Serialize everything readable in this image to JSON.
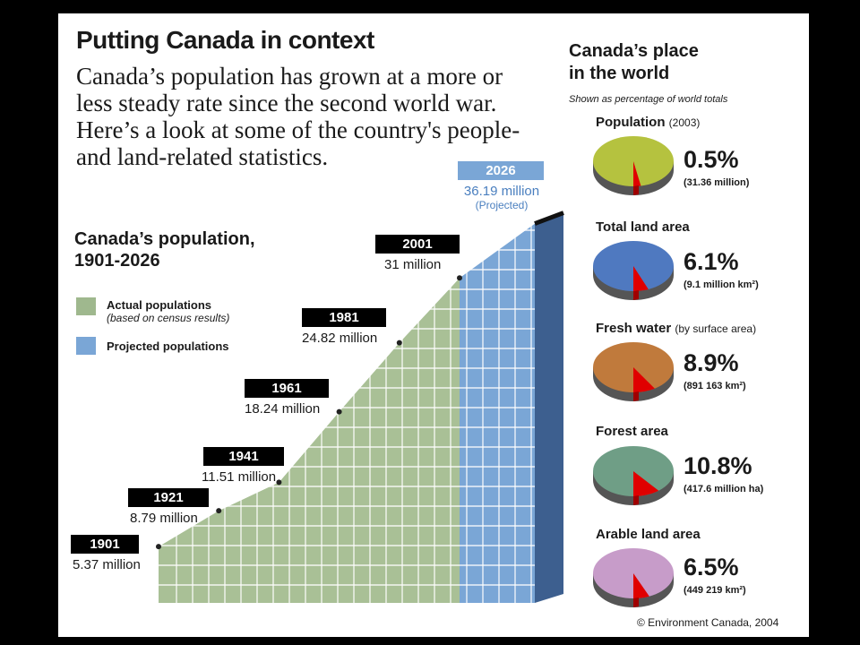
{
  "header": {
    "title": "Putting Canada in context",
    "intro": "Canada’s population has grown at a more or less steady rate since the second world war. Here’s a look at some of the country's people- and land-related statistics."
  },
  "chart_data": {
    "type": "area",
    "title": "Canada’s population, 1901-2026",
    "legend": [
      {
        "label": "Actual populations",
        "note": "(based on census results)",
        "color": "#9fb88e"
      },
      {
        "label": "Projected populations",
        "color": "#7aa6d6"
      }
    ],
    "points": [
      {
        "year": "1901",
        "label": "5.37 million",
        "value": 5.37,
        "projected": false
      },
      {
        "year": "1921",
        "label": "8.79 million",
        "value": 8.79,
        "projected": false
      },
      {
        "year": "1941",
        "label": "11.51 million",
        "value": 11.51,
        "projected": false
      },
      {
        "year": "1961",
        "label": "18.24 million",
        "value": 18.24,
        "projected": false
      },
      {
        "year": "1981",
        "label": "24.82 million",
        "value": 24.82,
        "projected": false
      },
      {
        "year": "2001",
        "label": "31 million",
        "value": 31.0,
        "projected": false
      },
      {
        "year": "2026",
        "label": "36.19 million",
        "value": 36.19,
        "projected": true,
        "note": "(Projected)"
      }
    ],
    "xlim": [
      1901,
      2026
    ],
    "ylim": [
      0,
      40
    ]
  },
  "world": {
    "title_line1": "Canada’s place",
    "title_line2": "in the world",
    "subtitle": "Shown as percentage of world totals",
    "stats": [
      {
        "label": "Population",
        "note": "(2003)",
        "percent": "0.5%",
        "value": 0.5,
        "absolute": "(31.36 million)",
        "color": "#b5c23f"
      },
      {
        "label": "Total land area",
        "note": "",
        "percent": "6.1%",
        "value": 6.1,
        "absolute": "(9.1 million km²)",
        "color": "#4f79c0"
      },
      {
        "label": "Fresh water",
        "note": "(by surface area)",
        "percent": "8.9%",
        "value": 8.9,
        "absolute": "(891 163 km²)",
        "color": "#c07a3c"
      },
      {
        "label": "Forest area",
        "note": "",
        "percent": "10.8%",
        "value": 10.8,
        "absolute": "(417.6 million ha)",
        "color": "#6f9e86"
      },
      {
        "label": "Arable land area",
        "note": "",
        "percent": "6.5%",
        "value": 6.5,
        "absolute": "(449 219 km²)",
        "color": "#c79cc9"
      }
    ]
  },
  "credit": "© Environment Canada, 2004"
}
